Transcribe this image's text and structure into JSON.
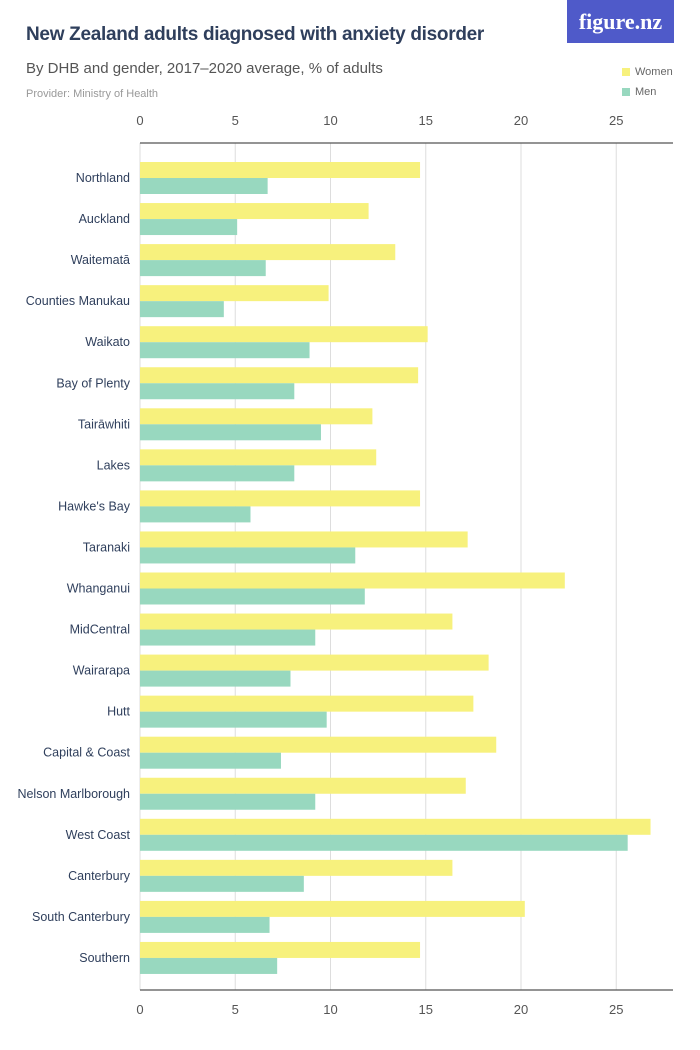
{
  "header": {
    "title": "New Zealand adults diagnosed with anxiety disorder",
    "subtitle": "By DHB and gender, 2017–2020 average, % of adults",
    "provider": "Provider: Ministry of Health",
    "logo": "figure.nz"
  },
  "chart_data": {
    "type": "bar",
    "orientation": "horizontal",
    "title": "New Zealand adults diagnosed with anxiety disorder",
    "subtitle": "By DHB and gender, 2017–2020 average, % of adults",
    "xlim": [
      0,
      28
    ],
    "ticks": [
      0,
      5,
      10,
      15,
      20,
      25
    ],
    "grid": true,
    "legend_position": "top-right",
    "categories": [
      "Northland",
      "Auckland",
      "Waitematā",
      "Counties Manukau",
      "Waikato",
      "Bay of Plenty",
      "Tairāwhiti",
      "Lakes",
      "Hawke's Bay",
      "Taranaki",
      "Whanganui",
      "MidCentral",
      "Wairarapa",
      "Hutt",
      "Capital & Coast",
      "Nelson Marlborough",
      "West Coast",
      "Canterbury",
      "South Canterbury",
      "Southern"
    ],
    "series": [
      {
        "name": "Women",
        "color": "#f7f17d",
        "values": [
          14.7,
          12.0,
          13.4,
          9.9,
          15.1,
          14.6,
          12.2,
          12.4,
          14.7,
          17.2,
          22.3,
          16.4,
          18.3,
          17.5,
          18.7,
          17.1,
          26.8,
          16.4,
          20.2,
          14.7
        ]
      },
      {
        "name": "Men",
        "color": "#98d8bf",
        "values": [
          6.7,
          5.1,
          6.6,
          4.4,
          8.9,
          8.1,
          9.5,
          8.1,
          5.8,
          11.3,
          11.8,
          9.2,
          7.9,
          9.8,
          7.4,
          9.2,
          25.6,
          8.6,
          6.8,
          7.2
        ]
      }
    ]
  }
}
